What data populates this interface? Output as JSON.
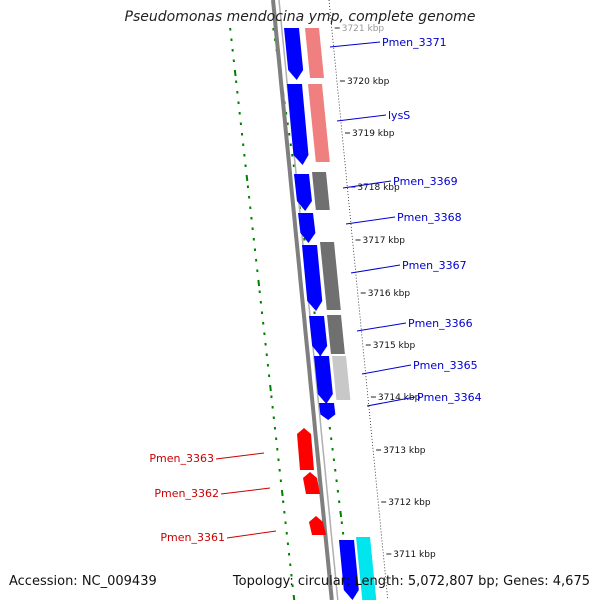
{
  "title": "Pseudomonas mendocina ymp, complete genome",
  "footer": {
    "accession": "Accession: NC_009439",
    "summary": "Topology: circular; Length: 5,072,807 bp; Genes: 4,675"
  },
  "ruler": {
    "ticks": [
      "3721 kbp",
      "3720 kbp",
      "3719 kbp",
      "3718 kbp",
      "3717 kbp",
      "3716 kbp",
      "3715 kbp",
      "3714 kbp",
      "3713 kbp",
      "3712 kbp",
      "3711 kbp"
    ]
  },
  "genes_forward": [
    "Pmen_3371",
    "lysS",
    "Pmen_3369",
    "Pmen_3368",
    "Pmen_3367",
    "Pmen_3366",
    "Pmen_3365",
    "Pmen_3364"
  ],
  "genes_reverse": [
    "Pmen_3363",
    "Pmen_3362",
    "Pmen_3361"
  ],
  "colors": {
    "forward_gene": "#0000ff",
    "reverse_gene": "#ff0000",
    "forward_label": "#0000cc",
    "reverse_label": "#cc0000",
    "backbone": "#7f7f7f",
    "gc_dots": "#008000",
    "cog_pink": "#f08080",
    "cog_gray": "#707070",
    "cog_light": "#c8c8c8",
    "cog_cyan": "#00e5ee"
  }
}
